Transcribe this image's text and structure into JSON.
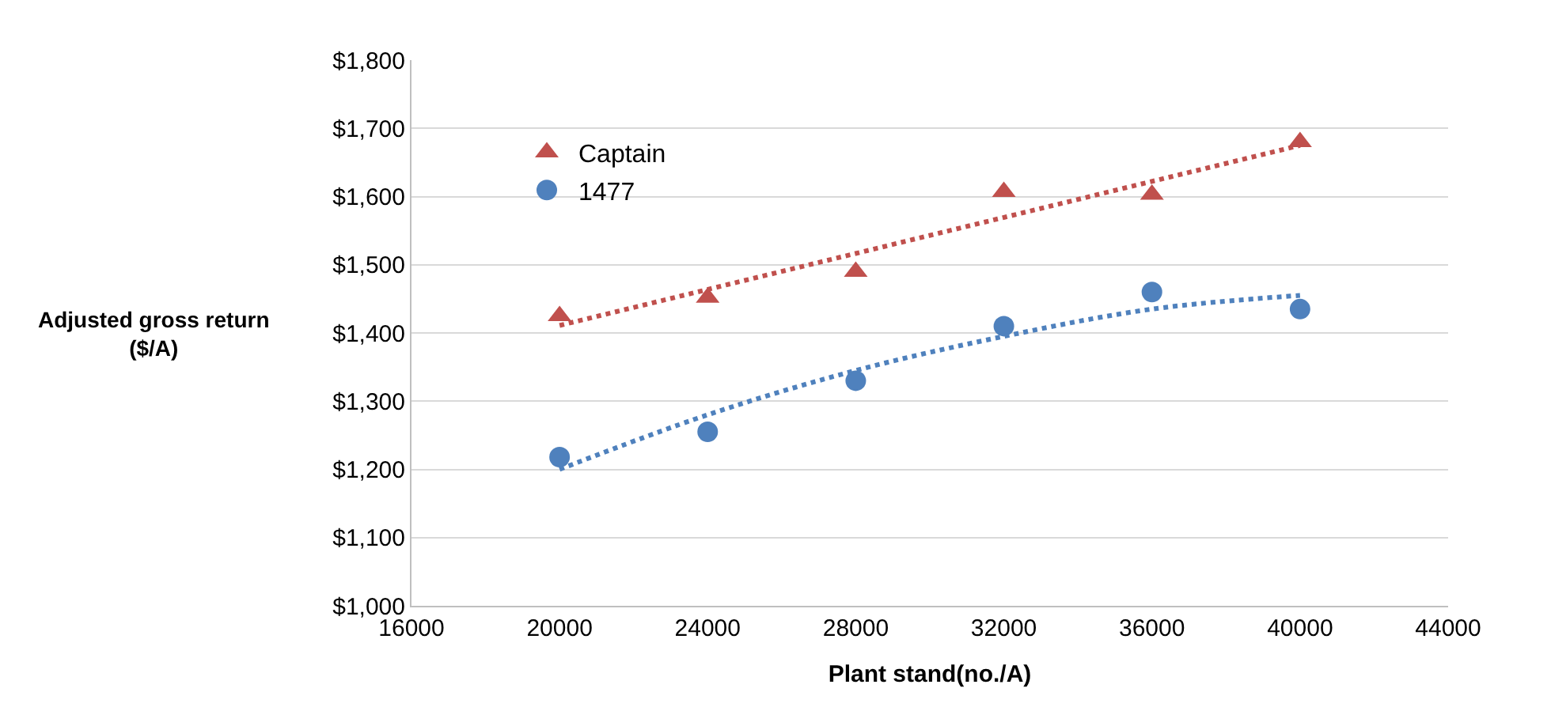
{
  "chart_data": {
    "type": "scatter",
    "xlabel": "Plant stand(no./A)",
    "ylabel": "Adjusted gross return\n($/A)",
    "xlim": [
      16000,
      44000
    ],
    "xticks": [
      16000,
      20000,
      24000,
      28000,
      32000,
      36000,
      40000,
      44000
    ],
    "ylim": [
      1000,
      1800
    ],
    "yticks": [
      {
        "value": 1000,
        "label": "$1,000"
      },
      {
        "value": 1100,
        "label": "$1,100"
      },
      {
        "value": 1200,
        "label": "$1,200"
      },
      {
        "value": 1300,
        "label": "$1,300"
      },
      {
        "value": 1400,
        "label": "$1,400"
      },
      {
        "value": 1500,
        "label": "$1,500"
      },
      {
        "value": 1600,
        "label": "$1,600"
      },
      {
        "value": 1700,
        "label": "$1,700"
      },
      {
        "value": 1800,
        "label": "$1,800"
      }
    ],
    "grid": "y",
    "legend": "top left",
    "x": [
      20000,
      24000,
      28000,
      32000,
      36000,
      40000
    ],
    "series": [
      {
        "name": "Captain",
        "color": "#c0504d",
        "marker": "triangle",
        "values": [
          1425,
          1452,
          1490,
          1607,
          1603,
          1680
        ]
      },
      {
        "name": "1477",
        "color": "#4f81bd",
        "marker": "circle",
        "values": [
          1218,
          1255,
          1330,
          1410,
          1460,
          1435
        ]
      },
      {
        "type": "line",
        "color": "#c0504d",
        "line_style": "dotted",
        "x": [
          20000,
          40000
        ],
        "values": [
          1411,
          1675
        ]
      },
      {
        "type": "line",
        "color": "#4f81bd",
        "line_style": "dotted",
        "x": [
          20000,
          24000,
          28000,
          32000,
          36000,
          40000
        ],
        "values": [
          1200,
          1280,
          1345,
          1395,
          1435,
          1455
        ]
      }
    ]
  }
}
